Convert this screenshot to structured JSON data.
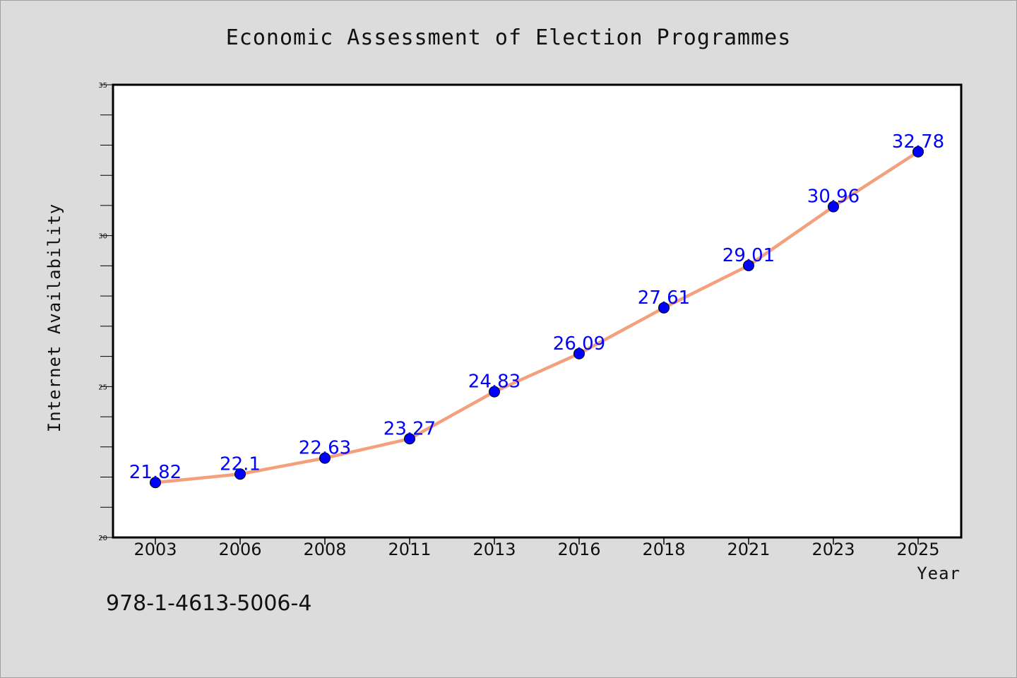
{
  "chart_data": {
    "type": "line",
    "title": "Economic Assessment of Election Programmes",
    "xlabel": "Year",
    "ylabel": "Internet Availability",
    "categories": [
      "2003",
      "2006",
      "2008",
      "2011",
      "2013",
      "2016",
      "2018",
      "2021",
      "2023",
      "2025"
    ],
    "values": [
      21.82,
      22.1,
      22.63,
      23.27,
      24.83,
      26.09,
      27.61,
      29.01,
      30.96,
      32.78
    ],
    "data_labels": [
      "21.82",
      "22.1",
      "22.63",
      "23.27",
      "24.83",
      "26.09",
      "27.61",
      "29.01",
      "30.96",
      "32.78"
    ],
    "ylim": [
      20,
      35
    ],
    "yticks": [
      20,
      25,
      30,
      35
    ],
    "grid": false,
    "line_color": "#f4a07c",
    "marker_color": "#0000ff",
    "label_color": "#0000ff"
  },
  "footer": {
    "isbn": "978-1-4613-5006-4"
  }
}
